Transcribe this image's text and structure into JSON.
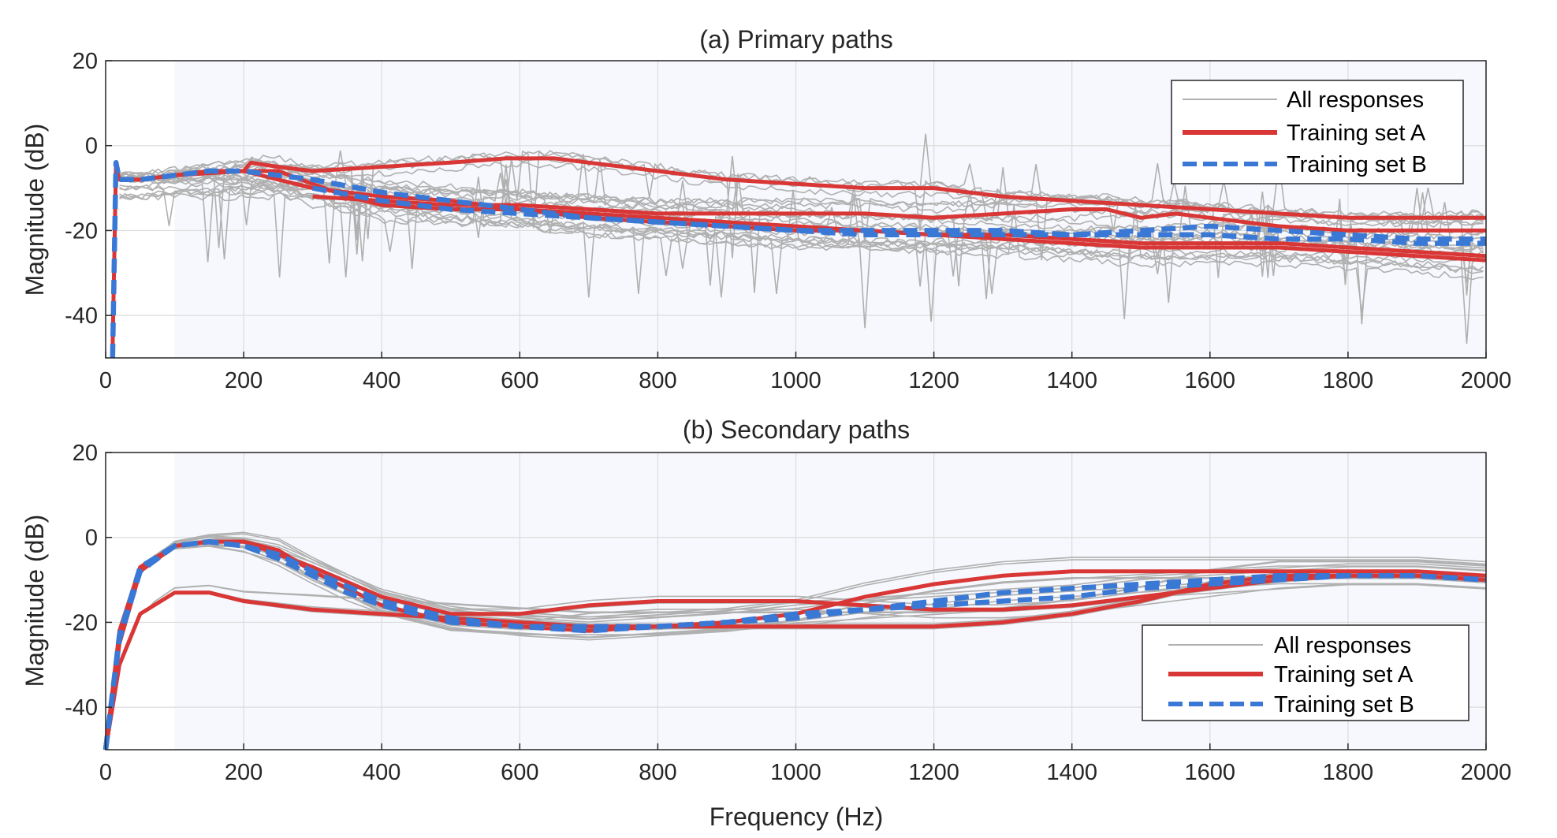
{
  "figure": {
    "xlabel": "Frequency (Hz)",
    "colors": {
      "grey": "#b0b0b0",
      "red": "#d93636",
      "blue": "#3a78d6",
      "shade": "#f6f8fd",
      "grid": "#dcdcdc"
    }
  },
  "chart_data": [
    {
      "type": "line",
      "title": "(a) Primary paths",
      "xlabel": "",
      "ylabel": "Magnitude (dB)",
      "xlim": [
        0,
        2000
      ],
      "ylim": [
        -50,
        20
      ],
      "xticks": [
        0,
        200,
        400,
        600,
        800,
        1000,
        1200,
        1400,
        1600,
        1800,
        2000
      ],
      "yticks": [
        20,
        0,
        -20,
        -40
      ],
      "shaded_band_x": [
        100,
        2000
      ],
      "grid": true,
      "legend_position": "top-right",
      "legend": [
        "All responses",
        "Training set  A",
        "Training set  B"
      ],
      "series": [
        {
          "name": "Training set  A",
          "style": "red-solid",
          "x": [
            10,
            15,
            20,
            50,
            100,
            150,
            200,
            210,
            250,
            300,
            400,
            500,
            580,
            650,
            700,
            800,
            900,
            1000,
            1100,
            1200,
            1300,
            1400,
            1500,
            1600,
            1700,
            1800,
            1900,
            2000
          ],
          "y": [
            -48,
            -5,
            -8,
            -8,
            -7,
            -6,
            -6,
            -4,
            -5,
            -6,
            -5,
            -4,
            -3,
            -3,
            -4,
            -6,
            -8,
            -9,
            -10,
            -10,
            -12,
            -13,
            -14,
            -15,
            -16,
            -17,
            -17,
            -17
          ]
        },
        {
          "name": "Training set  A",
          "style": "red-solid",
          "x": [
            100,
            150,
            200,
            250,
            300,
            350,
            400,
            500,
            600,
            700,
            800,
            900,
            1000,
            1100,
            1200,
            1300,
            1400,
            1500,
            1600,
            1700,
            1800,
            1900,
            2000
          ],
          "y": [
            -7,
            -6,
            -6,
            -6,
            -9,
            -12,
            -14,
            -15,
            -15,
            -16,
            -17,
            -18,
            -19,
            -20,
            -21,
            -21,
            -22,
            -23,
            -23,
            -23,
            -24,
            -25,
            -26
          ]
        },
        {
          "name": "Training set  A",
          "style": "red-solid",
          "x": [
            100,
            200,
            250,
            300,
            350,
            400,
            500,
            600,
            700,
            800,
            900,
            1000,
            1100,
            1200,
            1300,
            1400,
            1500,
            1600,
            1700,
            1800,
            1900,
            2000
          ],
          "y": [
            -7,
            -6,
            -8,
            -10,
            -11,
            -12,
            -13,
            -15,
            -17,
            -18,
            -19,
            -20,
            -20,
            -21,
            -22,
            -23,
            -24,
            -24,
            -24,
            -25,
            -26,
            -27
          ]
        },
        {
          "name": "Training set  A",
          "style": "red-solid",
          "x": [
            300,
            400,
            500,
            600,
            700,
            800,
            900,
            1000,
            1100,
            1200,
            1300,
            1400,
            1450,
            1500,
            1550,
            1600,
            1650,
            1700,
            1800,
            1900,
            2000
          ],
          "y": [
            -12,
            -13,
            -14,
            -14,
            -15,
            -16,
            -16,
            -16,
            -16,
            -17,
            -16,
            -15,
            -15,
            -17,
            -16,
            -17,
            -18,
            -19,
            -20,
            -20,
            -20
          ]
        },
        {
          "name": "Training set  B",
          "style": "blue-dashed",
          "x": [
            10,
            15,
            20,
            50,
            100,
            150,
            200,
            250,
            300,
            400,
            500,
            600,
            700,
            800,
            900,
            1000,
            1100,
            1200,
            1300,
            1400,
            1500,
            1600,
            1700,
            1800,
            1900,
            2000
          ],
          "y": [
            -50,
            -4,
            -8,
            -8,
            -7,
            -6,
            -6,
            -7,
            -8,
            -11,
            -13,
            -15,
            -17,
            -18,
            -19,
            -20,
            -20,
            -20,
            -20,
            -21,
            -21,
            -21,
            -22,
            -22,
            -23,
            -23
          ]
        },
        {
          "name": "Training set  B",
          "style": "blue-dashed",
          "x": [
            300,
            400,
            500,
            600,
            700,
            800,
            900,
            1000,
            1100,
            1200,
            1300,
            1400,
            1500,
            1600,
            1700,
            1800,
            1900,
            2000
          ],
          "y": [
            -10,
            -13,
            -15,
            -16,
            -17,
            -18,
            -19,
            -20,
            -21,
            -21,
            -21,
            -21,
            -20,
            -19,
            -20,
            -21,
            -22,
            -22
          ]
        }
      ]
    },
    {
      "type": "line",
      "title": "(b) Secondary paths",
      "xlabel": "Frequency (Hz)",
      "ylabel": "Magnitude (dB)",
      "xlim": [
        0,
        2000
      ],
      "ylim": [
        -50,
        20
      ],
      "xticks": [
        0,
        200,
        400,
        600,
        800,
        1000,
        1200,
        1400,
        1600,
        1800,
        2000
      ],
      "yticks": [
        20,
        0,
        -20,
        -40
      ],
      "shaded_band_x": [
        100,
        2000
      ],
      "grid": true,
      "legend_position": "lower-right",
      "legend": [
        "All responses",
        "Training set  A",
        "Training set  B"
      ],
      "series": [
        {
          "name": "Training set  A",
          "style": "red-solid",
          "x": [
            0,
            20,
            50,
            100,
            150,
            200,
            250,
            300,
            350,
            400,
            500,
            600,
            700,
            800,
            900,
            1000,
            1100,
            1200,
            1300,
            1400,
            1500,
            1600,
            1700,
            1800,
            1900,
            2000
          ],
          "y": [
            -50,
            -25,
            -8,
            -2,
            -1,
            -1,
            -3,
            -8,
            -12,
            -16,
            -20,
            -21,
            -22,
            -21,
            -20,
            -18,
            -14,
            -11,
            -9,
            -8,
            -8,
            -8,
            -8,
            -8,
            -8,
            -9
          ]
        },
        {
          "name": "Training set  A",
          "style": "red-solid",
          "x": [
            0,
            20,
            50,
            100,
            150,
            200,
            300,
            400,
            500,
            600,
            700,
            800,
            900,
            1000,
            1100,
            1200,
            1300,
            1400,
            1500,
            1600,
            1700,
            1800,
            1900,
            2000
          ],
          "y": [
            -50,
            -30,
            -18,
            -13,
            -13,
            -15,
            -17,
            -18,
            -19,
            -20,
            -21,
            -21,
            -21,
            -21,
            -21,
            -21,
            -20,
            -18,
            -15,
            -11,
            -9,
            -9,
            -9,
            -10
          ]
        },
        {
          "name": "Training set  A",
          "style": "red-solid",
          "x": [
            0,
            20,
            50,
            100,
            150,
            200,
            250,
            300,
            400,
            500,
            600,
            700,
            800,
            900,
            1000,
            1100,
            1200,
            1300,
            1400,
            1500,
            1600,
            1700,
            1800,
            1900,
            2000
          ],
          "y": [
            -50,
            -22,
            -7,
            -2,
            -1,
            -1,
            -4,
            -7,
            -14,
            -18,
            -18,
            -16,
            -15,
            -15,
            -15,
            -16,
            -17,
            -17,
            -16,
            -14,
            -12,
            -10,
            -9,
            -9,
            -10
          ]
        },
        {
          "name": "Training set  B",
          "style": "blue-dashed",
          "x": [
            0,
            20,
            50,
            100,
            150,
            200,
            250,
            300,
            350,
            400,
            500,
            600,
            700,
            800,
            900,
            1000,
            1100,
            1200,
            1300,
            1400,
            1500,
            1600,
            1700,
            1800,
            1900,
            2000
          ],
          "y": [
            -50,
            -24,
            -8,
            -2,
            -1,
            -2,
            -5,
            -9,
            -13,
            -16,
            -20,
            -21,
            -21,
            -21,
            -20,
            -19,
            -17,
            -15,
            -13,
            -12,
            -11,
            -10,
            -9,
            -9,
            -9,
            -10
          ]
        },
        {
          "name": "Training set  B",
          "style": "blue-dashed",
          "x": [
            0,
            20,
            50,
            100,
            150,
            200,
            250,
            300,
            400,
            500,
            600,
            700,
            800,
            900,
            1000,
            1100,
            1200,
            1300,
            1400,
            1500,
            1600,
            1700,
            1800,
            1900,
            2000
          ],
          "y": [
            -50,
            -23,
            -7,
            -2,
            -1,
            -2,
            -4,
            -8,
            -15,
            -19,
            -21,
            -22,
            -21,
            -20,
            -18,
            -17,
            -16,
            -15,
            -14,
            -12,
            -11,
            -10,
            -9,
            -9,
            -10
          ]
        }
      ]
    }
  ]
}
